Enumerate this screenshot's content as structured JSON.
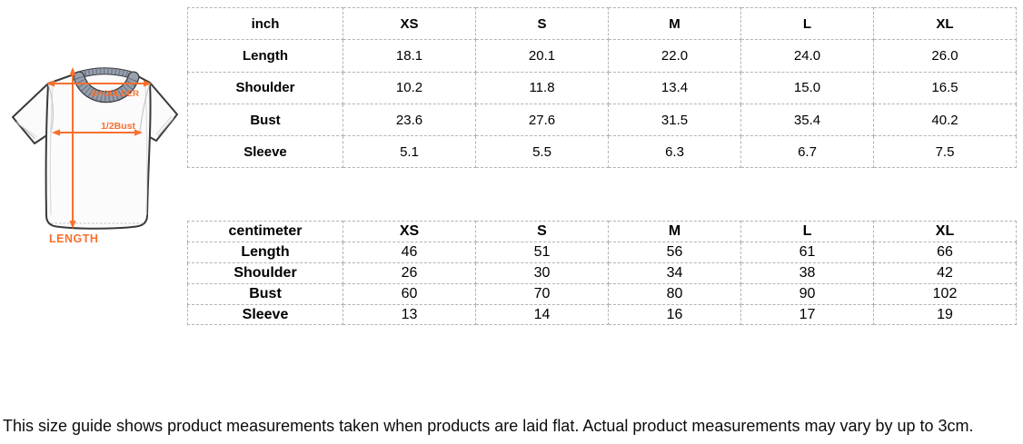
{
  "colors": {
    "accent": "#f8702e",
    "shirt_outline": "#3a3a3c",
    "table_border_dashed": "#b3b3b3",
    "collar_gray": "#99a1af"
  },
  "diagram": {
    "shoulder_label": "SHOULDER",
    "bust_label": "1/2Bust",
    "length_label": "LENGTH"
  },
  "tables": [
    {
      "id": "inch",
      "unit_label": "inch",
      "columns": [
        "XS",
        "S",
        "M",
        "L",
        "XL"
      ],
      "rows": [
        {
          "label": "Length",
          "values": [
            "18.1",
            "20.1",
            "22.0",
            "24.0",
            "26.0"
          ]
        },
        {
          "label": "Shoulder",
          "values": [
            "10.2",
            "11.8",
            "13.4",
            "15.0",
            "16.5"
          ]
        },
        {
          "label": "Bust",
          "values": [
            "23.6",
            "27.6",
            "31.5",
            "35.4",
            "40.2"
          ]
        },
        {
          "label": "Sleeve",
          "values": [
            "5.1",
            "5.5",
            "6.3",
            "6.7",
            "7.5"
          ]
        }
      ]
    },
    {
      "id": "centimeter",
      "unit_label": "centimeter",
      "columns": [
        "XS",
        "S",
        "M",
        "L",
        "XL"
      ],
      "rows": [
        {
          "label": "Length",
          "values": [
            "46",
            "51",
            "56",
            "61",
            "66"
          ]
        },
        {
          "label": "Shoulder",
          "values": [
            "26",
            "30",
            "34",
            "38",
            "42"
          ]
        },
        {
          "label": "Bust",
          "values": [
            "60",
            "70",
            "80",
            "90",
            "102"
          ]
        },
        {
          "label": "Sleeve",
          "values": [
            "13",
            "14",
            "16",
            "17",
            "19"
          ]
        }
      ]
    }
  ],
  "footer": {
    "note": "This size guide shows product measurements taken when products are laid flat. Actual product measurements may vary by up to 3cm."
  }
}
